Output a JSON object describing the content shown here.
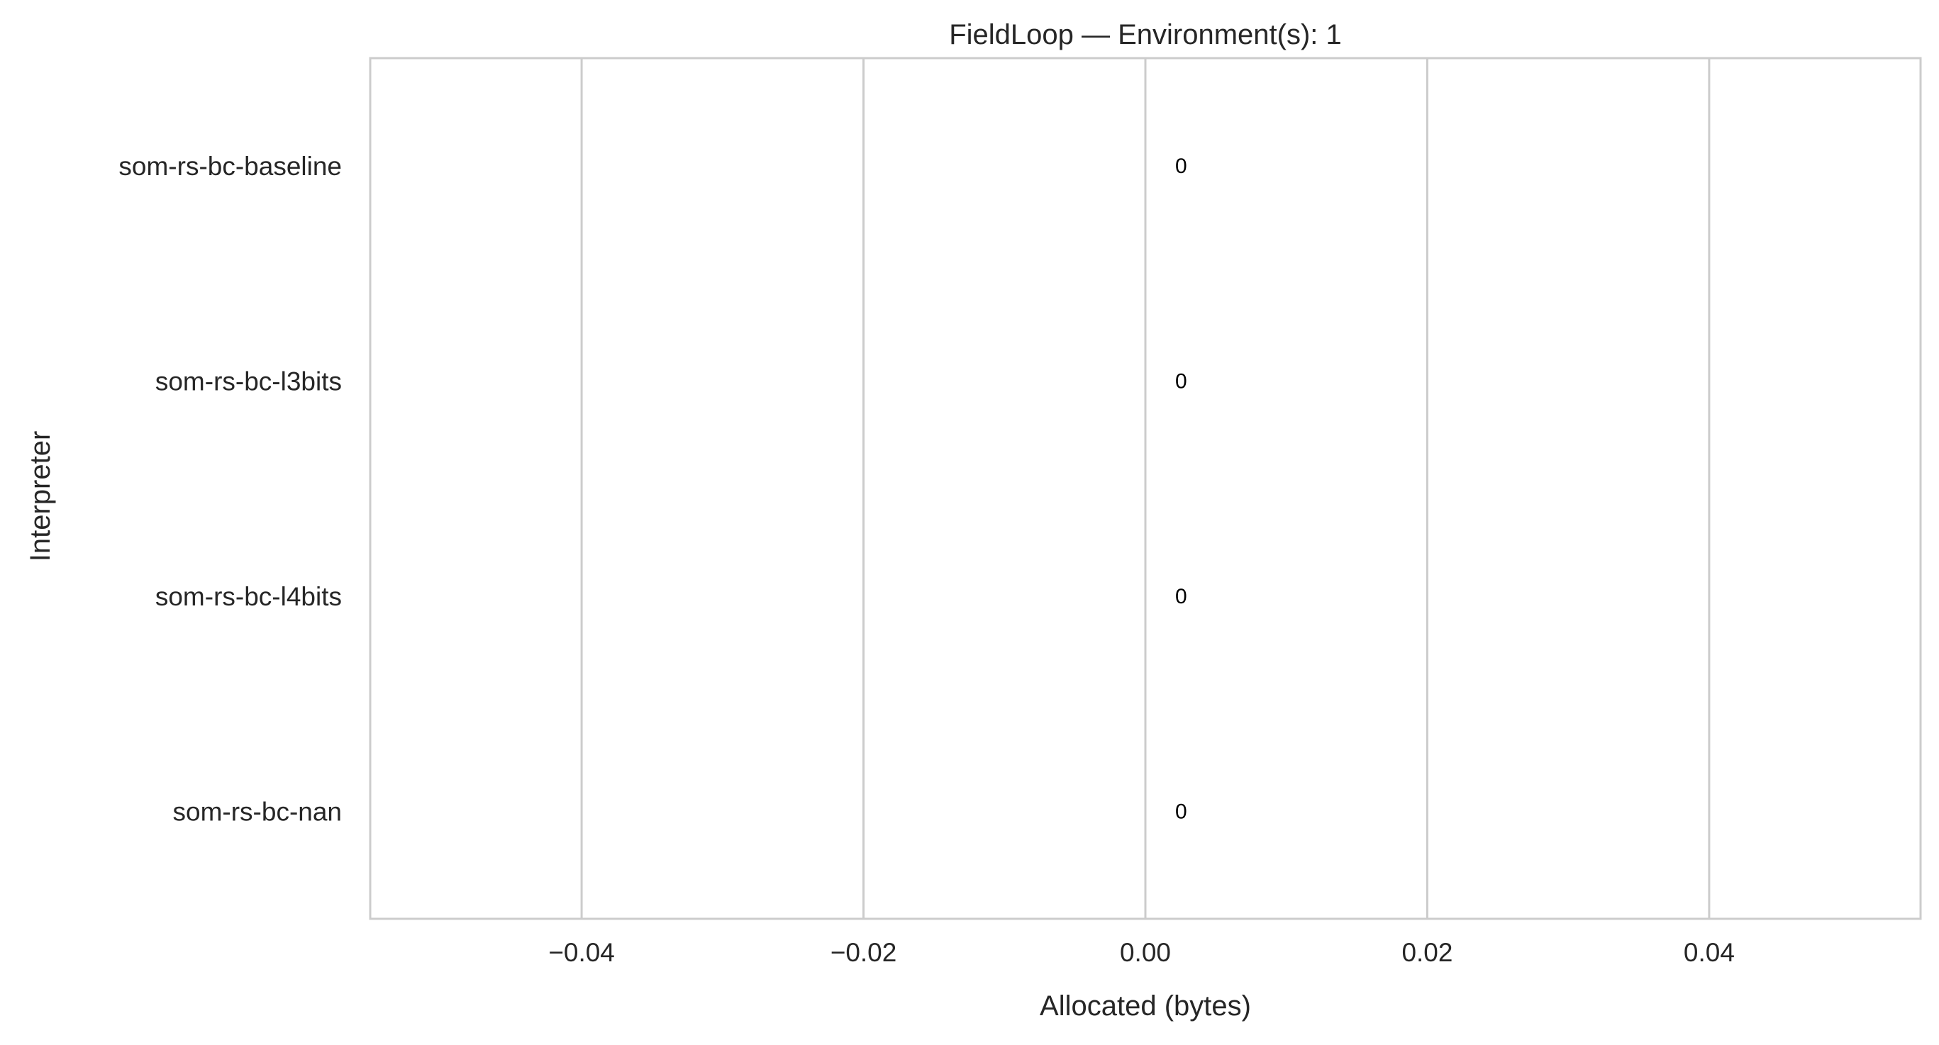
{
  "chart_data": {
    "type": "bar",
    "orientation": "horizontal",
    "title": "FieldLoop — Environment(s): 1",
    "xlabel": "Allocated (bytes)",
    "ylabel": "Interpreter",
    "categories": [
      "som-rs-bc-baseline",
      "som-rs-bc-l3bits",
      "som-rs-bc-l4bits",
      "som-rs-bc-nan"
    ],
    "values": [
      0,
      0,
      0,
      0
    ],
    "data_labels": [
      "0",
      "0",
      "0",
      "0"
    ],
    "xlim": [
      -0.055,
      0.055
    ],
    "xticks": [
      -0.04,
      -0.02,
      0.0,
      0.02,
      0.04
    ],
    "xtick_labels": [
      "−0.04",
      "−0.02",
      "0.00",
      "0.02",
      "0.04"
    ],
    "grid": "vertical",
    "legend": "none",
    "colors": {
      "grid": "#cccccc",
      "spine": "#cccccc",
      "bar_edge": "#3b3b3b",
      "text": "#262626"
    }
  }
}
